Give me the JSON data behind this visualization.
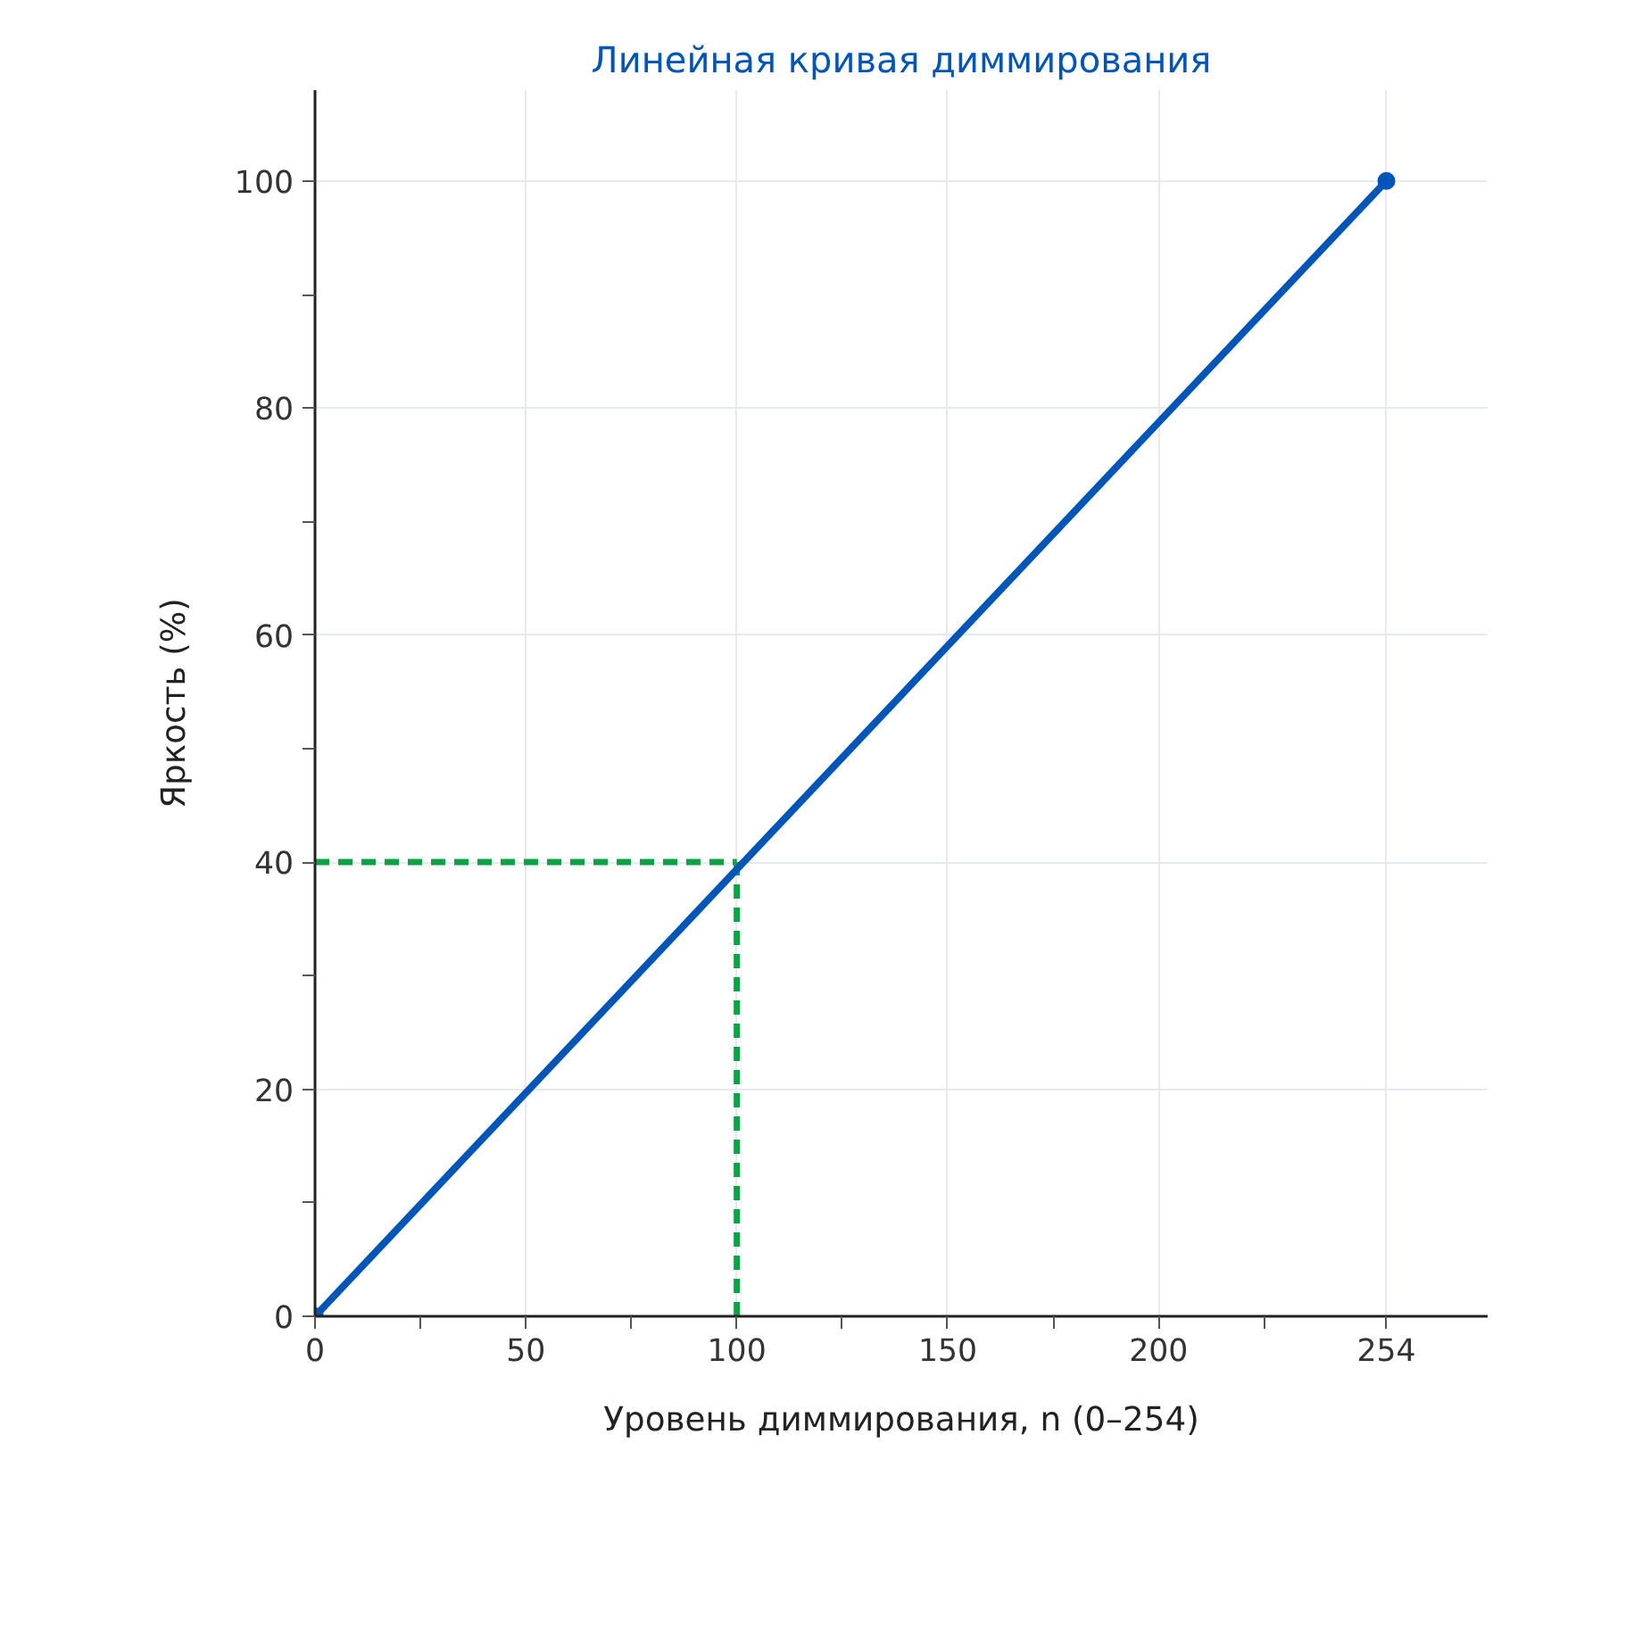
{
  "chart_data": {
    "type": "line",
    "title": "Линейная кривая диммирования",
    "xlabel": "Уровень диммирования, n (0–254)",
    "ylabel": "Яркость (%)",
    "series": [
      {
        "color": "#0055b8",
        "x": [
          0,
          254
        ],
        "values": [
          0,
          100
        ],
        "marker": "circle",
        "line_style": "solid"
      },
      {
        "color": "#0ca245",
        "x": [
          0,
          100
        ],
        "values": [
          40,
          40
        ],
        "line_style": "dashed"
      },
      {
        "color": "#0ca245",
        "x": [
          100,
          100
        ],
        "values": [
          0,
          40
        ],
        "line_style": "dashed"
      }
    ],
    "xlim": [
      0,
      278
    ],
    "ylim": [
      0,
      108
    ],
    "xticks": [
      0,
      {
        "value": 25,
        "label": null
      },
      50,
      {
        "value": 75,
        "label": null
      },
      100,
      {
        "value": 125,
        "label": null
      },
      150,
      {
        "value": 175,
        "label": null
      },
      200,
      {
        "value": 225,
        "label": null
      },
      254
    ],
    "yticks": [
      0,
      {
        "value": 10,
        "label": null
      },
      20,
      {
        "value": 30,
        "label": null
      },
      40,
      {
        "value": 50,
        "label": null
      },
      60,
      {
        "value": 70,
        "label": null
      },
      80,
      {
        "value": 90,
        "label": null
      },
      100
    ],
    "grid": true
  }
}
